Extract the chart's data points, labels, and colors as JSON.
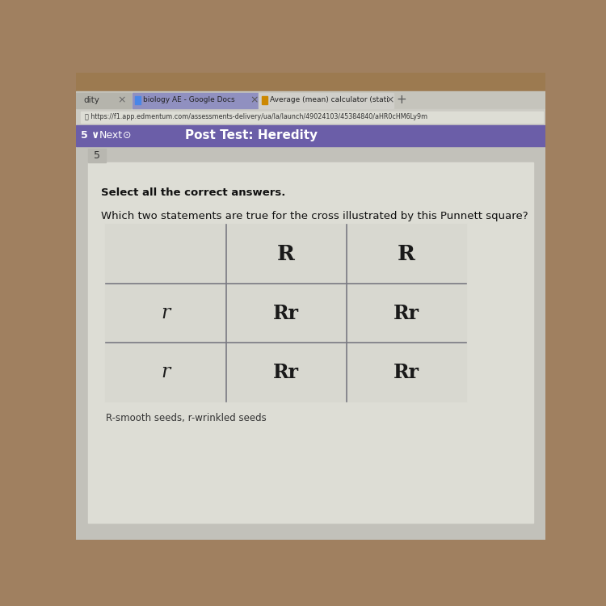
{
  "outer_bg": "#a08060",
  "screen_bg": "#c8c8c0",
  "tab_bar_color": "#d0cfc8",
  "tab_active_color": "#c8c8c0",
  "tab_inactive_color": "#b8b8b0",
  "url_bar_color": "#d8d8d0",
  "url_bar_inner": "#e8e8e0",
  "purple_bar_color": "#6b5ea8",
  "content_outer_bg": "#c0bfb8",
  "content_inner_bg": "#dcdbd4",
  "card_bg": "#e0e0d8",
  "grid_bg": "#d8d8d0",
  "grid_line_color": "#7a7a82",
  "tab_text_left": "dity",
  "tab_text_bio": "biology AE - Google Docs",
  "tab_text_avg": "Average (mean) calculator (stati",
  "url_text": "https://f1.app.edmentum.com/assessments-delivery/ua/la/launch/49024103/45384840/aHR0cHM6Ly9m",
  "nav_left": "5 ∨",
  "nav_next": "Next",
  "nav_title": "Post Test: Heredity",
  "question_num": "5",
  "instruction": "Select all the correct answers.",
  "question": "Which two statements are true for the cross illustrated by this Punnett square?",
  "note": "R-smooth seeds, r-wrinkled seeds",
  "grid_header": [
    "",
    "R",
    "R"
  ],
  "grid_rows": [
    [
      "r",
      "Rr",
      "Rr"
    ],
    [
      "r",
      "Rr",
      "Rr"
    ]
  ],
  "header_color": "#1a1a1a",
  "row_label_color": "#1a1a1a",
  "cell_color": "#1a1a1a",
  "text_color": "#111111",
  "note_color": "#333333"
}
